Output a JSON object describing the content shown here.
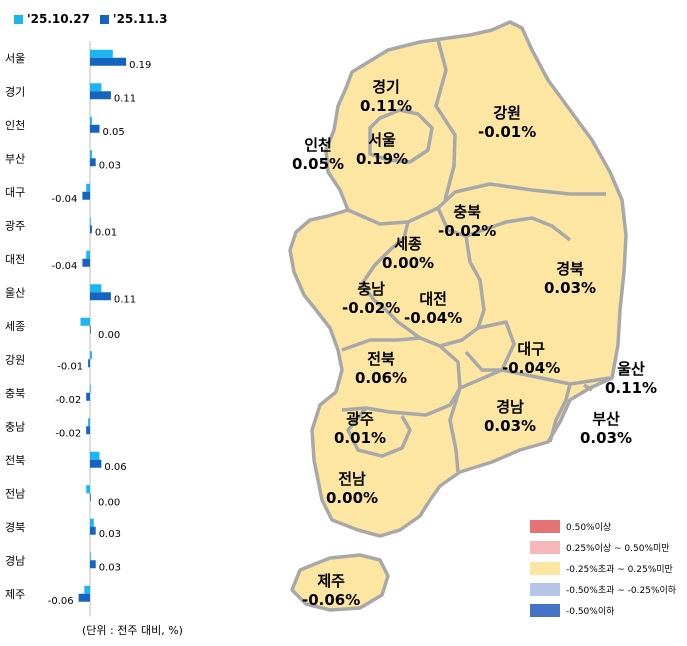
{
  "legend": {
    "series": [
      {
        "name": "'25.10.27",
        "color": "#1ab6f0"
      },
      {
        "name": "'25.11.3",
        "color": "#1565c0"
      }
    ]
  },
  "unit_note": "(단위 : 전주 대비, %)",
  "chart_data": {
    "type": "bar",
    "orientation": "horizontal",
    "categories": [
      "서울",
      "경기",
      "인천",
      "부산",
      "대구",
      "광주",
      "대전",
      "울산",
      "세종",
      "강원",
      "충북",
      "충남",
      "전북",
      "전남",
      "경북",
      "경남",
      "제주"
    ],
    "series": [
      {
        "name": "'25.10.27",
        "values": [
          0.12,
          0.06,
          0.01,
          0.01,
          -0.02,
          0.0,
          -0.02,
          0.06,
          -0.05,
          0.01,
          0.0,
          -0.01,
          0.05,
          -0.02,
          0.02,
          0.0,
          -0.03
        ]
      },
      {
        "name": "'25.11.3",
        "values": [
          0.19,
          0.11,
          0.05,
          0.03,
          -0.04,
          0.01,
          -0.04,
          0.11,
          0.0,
          -0.01,
          -0.02,
          -0.02,
          0.06,
          0.0,
          0.03,
          0.03,
          -0.06
        ]
      }
    ],
    "data_labels": [
      "0.19",
      "0.11",
      "0.05",
      "0.03",
      "-0.04",
      "0.01",
      "-0.04",
      "0.11",
      "0.00",
      "-0.01",
      "-0.02",
      "-0.02",
      "0.06",
      "0.00",
      "0.03",
      "0.03",
      "-0.06"
    ]
  },
  "map": {
    "regions": [
      {
        "name": "경기",
        "value": "0.11%"
      },
      {
        "name": "강원",
        "value": "-0.01%"
      },
      {
        "name": "인천",
        "value": "0.05%"
      },
      {
        "name": "서울",
        "value": "0.19%"
      },
      {
        "name": "충북",
        "value": "-0.02%"
      },
      {
        "name": "세종",
        "value": "0.00%"
      },
      {
        "name": "충남",
        "value": "-0.02%"
      },
      {
        "name": "대전",
        "value": "-0.04%"
      },
      {
        "name": "경북",
        "value": "0.03%"
      },
      {
        "name": "대구",
        "value": "-0.04%"
      },
      {
        "name": "전북",
        "value": "0.06%"
      },
      {
        "name": "울산",
        "value": "0.11%"
      },
      {
        "name": "광주",
        "value": "0.01%"
      },
      {
        "name": "경남",
        "value": "0.03%"
      },
      {
        "name": "부산",
        "value": "0.03%"
      },
      {
        "name": "전남",
        "value": "0.00%"
      },
      {
        "name": "제주",
        "value": "-0.06%"
      }
    ],
    "fill_color": "#fde6a2",
    "border_color": "#a8a8a8"
  },
  "range_legend": [
    {
      "label": "0.50%이상",
      "color": "#e57373"
    },
    {
      "label": "0.25%이상 ~ 0.50%미만",
      "color": "#f6b8b8"
    },
    {
      "label": "-0.25%초과 ~ 0.25%미만",
      "color": "#fde6a2"
    },
    {
      "label": "-0.50%초과 ~ -0.25%이하",
      "color": "#b7c5e6"
    },
    {
      "label": "-0.50%이하",
      "color": "#4472c4"
    }
  ]
}
